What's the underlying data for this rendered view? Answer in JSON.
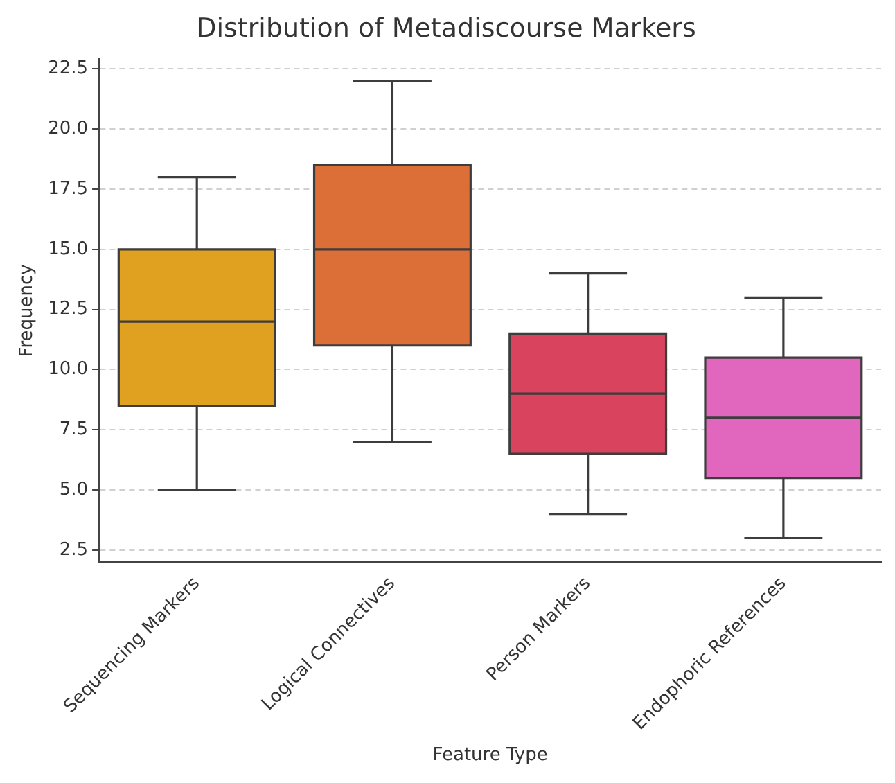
{
  "chart_data": {
    "type": "box",
    "title": "Distribution of Metadiscourse Markers",
    "xlabel": "Feature Type",
    "ylabel": "Frequency",
    "categories": [
      "Sequencing Markers",
      "Logical Connectives",
      "Person Markers",
      "Endophoric References"
    ],
    "boxes": [
      {
        "low": 5,
        "q1": 8.5,
        "median": 12,
        "q3": 15,
        "high": 18
      },
      {
        "low": 7,
        "q1": 11,
        "median": 15,
        "q3": 18.5,
        "high": 22
      },
      {
        "low": 4,
        "q1": 6.5,
        "median": 9,
        "q3": 11.5,
        "high": 14
      },
      {
        "low": 3,
        "q1": 5.5,
        "median": 8,
        "q3": 10.5,
        "high": 13
      }
    ],
    "colors": [
      "#e0a121",
      "#dc6f37",
      "#d9435e",
      "#e166bd"
    ],
    "ylim": [
      2.0,
      22.9
    ],
    "yticks": [
      {
        "value": 2.5,
        "label": "2.5"
      },
      {
        "value": 5,
        "label": "5.0"
      },
      {
        "value": 7.5,
        "label": "7.5"
      },
      {
        "value": 10,
        "label": "10.0"
      },
      {
        "value": 12.5,
        "label": "12.5"
      },
      {
        "value": 15,
        "label": "15.0"
      },
      {
        "value": 17.5,
        "label": "17.5"
      },
      {
        "value": 20,
        "label": "20.0"
      },
      {
        "value": 22.5,
        "label": "22.5"
      }
    ],
    "grid": "y",
    "legend": false
  }
}
